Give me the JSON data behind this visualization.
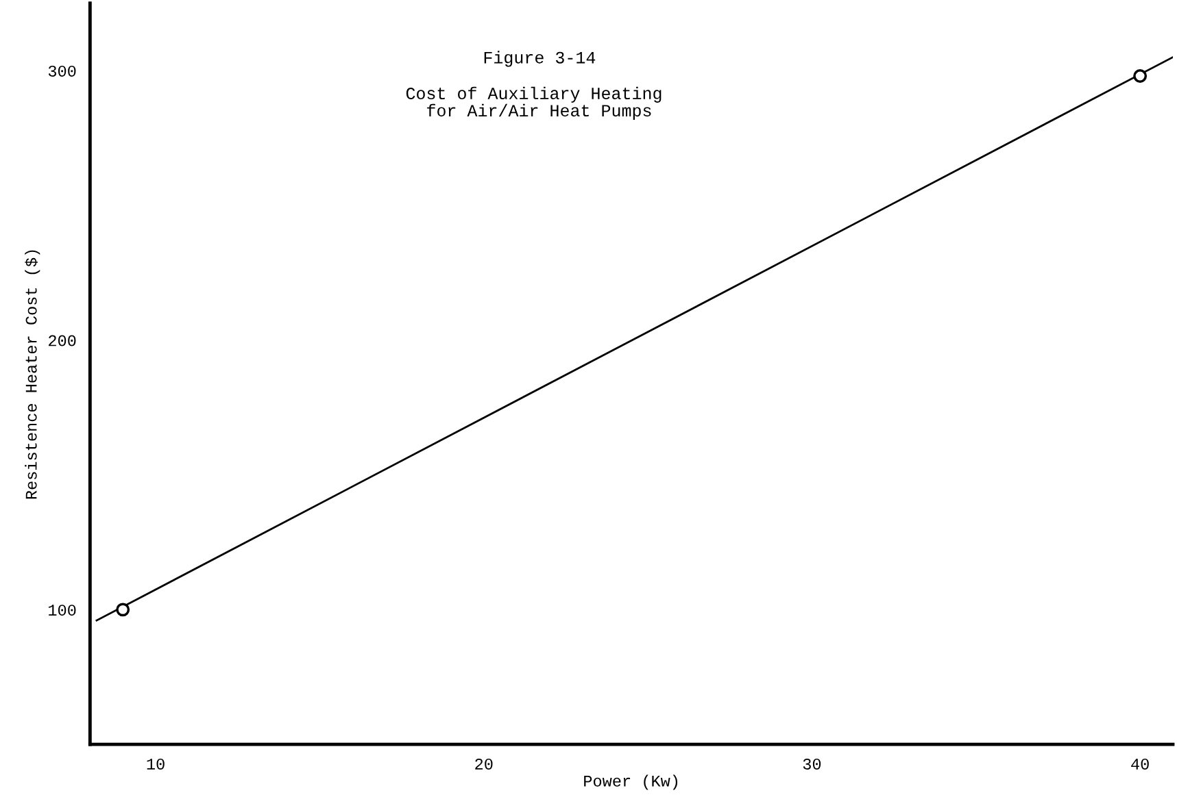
{
  "chart_data": {
    "type": "line",
    "title": "Figure 3-14",
    "subtitle": "Cost of Auxiliary Heating\n for Air/Air Heat Pumps",
    "xlabel": "Power (Kw)",
    "ylabel": "Resistence Heater Cost ($)",
    "xlim": [
      8,
      41
    ],
    "xticks": [
      10,
      20,
      30,
      40
    ],
    "ylim": [
      50,
      325
    ],
    "yticks": [
      100,
      200,
      300
    ],
    "grid": false,
    "series": [
      {
        "color": "#000000",
        "x": [
          8.2,
          41
        ],
        "values": [
          96,
          305
        ],
        "marker": "none"
      },
      {
        "type": "scatter",
        "color": "#000000",
        "x": [
          9,
          40
        ],
        "values": [
          100,
          298
        ],
        "marker": "circle"
      }
    ]
  }
}
